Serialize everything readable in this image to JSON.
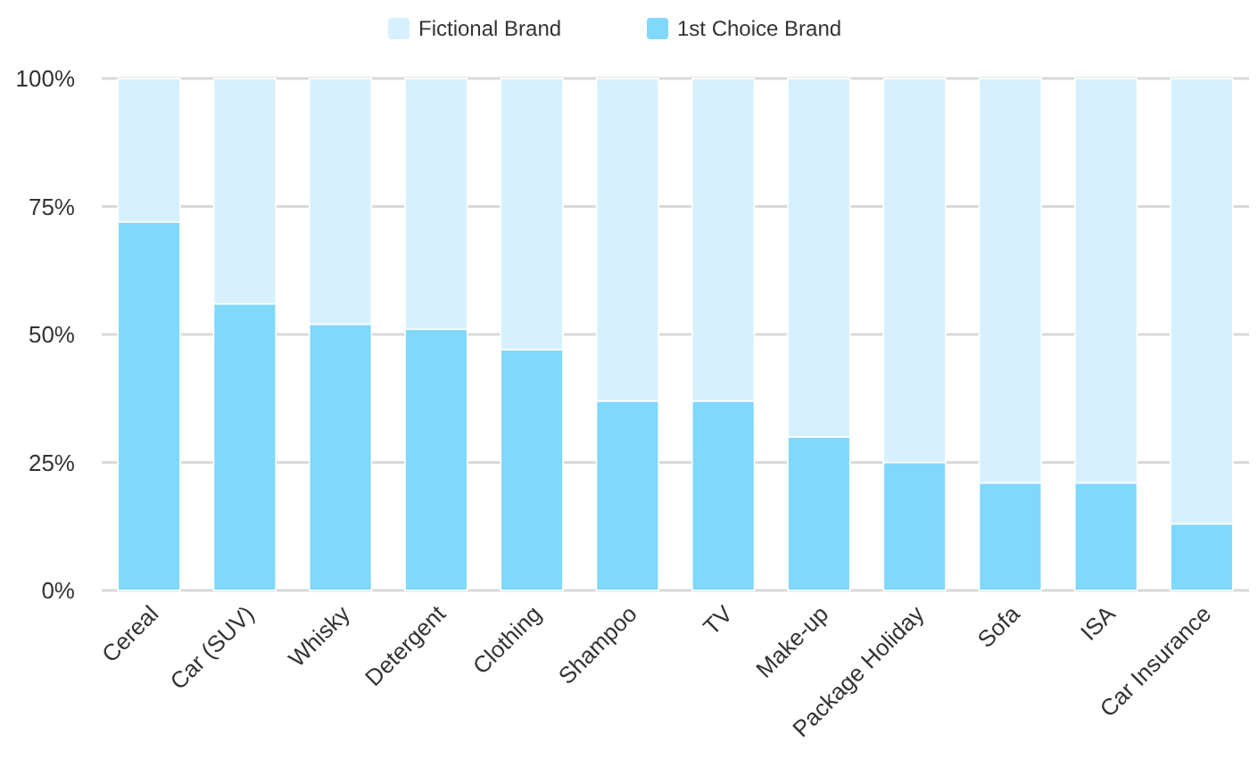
{
  "chart_data": {
    "type": "bar",
    "stacked": true,
    "categories": [
      "Cereal",
      "Car (SUV)",
      "Whisky",
      "Detergent",
      "Clothing",
      "Shampoo",
      "TV",
      "Make-up",
      "Package Holiday",
      "Sofa",
      "ISA",
      "Car Insurance"
    ],
    "series": [
      {
        "name": "1st Choice Brand",
        "color": "#80d8fd",
        "values": [
          72,
          56,
          52,
          51,
          47,
          37,
          37,
          30,
          25,
          21,
          21,
          13
        ]
      },
      {
        "name": "Fictional Brand",
        "color": "#d6f1fd",
        "values": [
          28,
          44,
          48,
          49,
          53,
          63,
          63,
          70,
          75,
          79,
          79,
          87
        ]
      }
    ],
    "ylim": [
      0,
      100
    ],
    "yticks": [
      {
        "value": 0,
        "label": "0%"
      },
      {
        "value": 25,
        "label": "25%"
      },
      {
        "value": 50,
        "label": "50%"
      },
      {
        "value": 75,
        "label": "75%"
      },
      {
        "value": 100,
        "label": "100%"
      }
    ],
    "grid": "y",
    "legend": "top"
  }
}
